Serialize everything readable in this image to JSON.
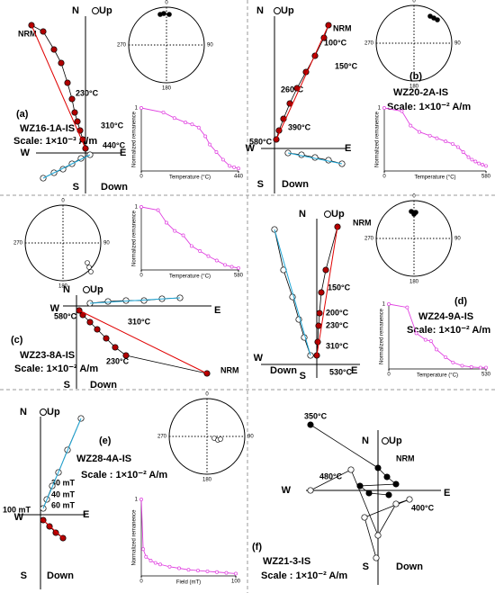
{
  "chart_data": [
    {
      "type": "line",
      "xlabel": "Temperature (°C)",
      "ylabel": "Normalized remanence",
      "color": "#e040e0",
      "xlim": [
        0,
        440
      ],
      "ylim": [
        0,
        1
      ],
      "xticks": [
        0,
        440
      ],
      "yticks": [
        1
      ],
      "x": [
        0,
        100,
        150,
        200,
        230,
        260,
        290,
        310,
        340,
        370,
        400,
        420,
        440
      ],
      "values": [
        1,
        0.93,
        0.84,
        0.77,
        0.74,
        0.69,
        0.55,
        0.42,
        0.3,
        0.18,
        0.08,
        0.06,
        0.04
      ]
    },
    {
      "type": "line",
      "xlabel": "Temperature (°C)",
      "ylabel": "Normalized remanence",
      "color": "#e040e0",
      "xlim": [
        0,
        580
      ],
      "ylim": [
        0,
        1
      ],
      "xticks": [
        0,
        580
      ],
      "yticks": [
        1
      ],
      "x": [
        0,
        100,
        150,
        200,
        260,
        300,
        350,
        390,
        420,
        450,
        480,
        500,
        520,
        540,
        560,
        580
      ],
      "values": [
        1,
        0.95,
        0.72,
        0.62,
        0.56,
        0.52,
        0.47,
        0.43,
        0.38,
        0.3,
        0.22,
        0.18,
        0.15,
        0.12,
        0.1,
        0.08
      ]
    },
    {
      "type": "line",
      "xlabel": "Temperature (°C)",
      "ylabel": "Normalized remanence",
      "color": "#e040e0",
      "xlim": [
        0,
        580
      ],
      "ylim": [
        0,
        1
      ],
      "xticks": [
        0,
        580
      ],
      "yticks": [
        1
      ],
      "x": [
        0,
        100,
        150,
        200,
        250,
        300,
        350,
        400,
        450,
        500,
        540,
        580
      ],
      "values": [
        1,
        0.95,
        0.75,
        0.62,
        0.55,
        0.38,
        0.3,
        0.22,
        0.15,
        0.08,
        0.05,
        0.03
      ]
    },
    {
      "type": "line",
      "xlabel": "Temperature (°C)",
      "ylabel": "Normalized remanence",
      "color": "#e040e0",
      "xlim": [
        0,
        530
      ],
      "ylim": [
        0,
        1
      ],
      "xticks": [
        0,
        530
      ],
      "yticks": [
        1
      ],
      "x": [
        0,
        100,
        150,
        200,
        230,
        260,
        310,
        350,
        400,
        450,
        500,
        530
      ],
      "values": [
        1,
        0.95,
        0.55,
        0.45,
        0.43,
        0.3,
        0.18,
        0.1,
        0.05,
        0.03,
        0.02,
        0.02
      ]
    },
    {
      "type": "line",
      "xlabel": "Field (mT)",
      "ylabel": "Normalized remanence",
      "color": "#e040e0",
      "xlim": [
        0,
        100
      ],
      "ylim": [
        0,
        1
      ],
      "xticks": [
        0,
        100
      ],
      "yticks": [
        1
      ],
      "x": [
        0,
        2,
        5,
        10,
        15,
        20,
        30,
        40,
        50,
        60,
        70,
        80,
        90,
        100
      ],
      "values": [
        1,
        0.35,
        0.25,
        0.2,
        0.17,
        0.15,
        0.12,
        0.1,
        0.08,
        0.07,
        0.06,
        0.05,
        0.04,
        0.03
      ]
    }
  ],
  "panels": [
    {
      "label": "(a)",
      "sample": "WZ16-1A-IS",
      "scale": "Scale: 1×10⁻³ A/m",
      "n": "N",
      "up": "Up",
      "s": "S",
      "down": "Down",
      "w": "W",
      "e": "E",
      "steps": [
        "NRM",
        "230°C",
        "310°C",
        "440°C"
      ],
      "stereo": [
        "0",
        "90",
        "180",
        "270"
      ]
    },
    {
      "label": "(b)",
      "sample": "WZ20-2A-IS",
      "scale": "Scale: 1×10⁻² A/m",
      "n": "N",
      "up": "Up",
      "s": "S",
      "down": "Down",
      "w": "W",
      "e": "E",
      "steps": [
        "NRM",
        "100°C",
        "150°C",
        "260°C",
        "390°C",
        "580°C"
      ],
      "stereo": [
        "0",
        "90",
        "180",
        "270"
      ]
    },
    {
      "label": "(c)",
      "sample": "WZ23-8A-IS",
      "scale": "Scale: 1×10⁻² A/m",
      "n": "N",
      "up": "Up",
      "s": "S",
      "down": "Down",
      "w": "W",
      "e": "E",
      "steps": [
        "580°C",
        "310°C",
        "230°C",
        "NRM"
      ],
      "stereo": [
        "0",
        "90",
        "180",
        "270"
      ]
    },
    {
      "label": "(d)",
      "sample": "WZ24-9A-IS",
      "scale": "Scale: 1×10⁻² A/m",
      "n": "N",
      "up": "Up",
      "s": "S",
      "down": "Down",
      "w": "W",
      "e": "E",
      "steps": [
        "NRM",
        "150°C",
        "200°C",
        "230°C",
        "310°C",
        "530°C"
      ],
      "stereo": [
        "0",
        "90",
        "180",
        "270"
      ]
    },
    {
      "label": "(e)",
      "sample": "WZ28-4A-IS",
      "scale": "Scale : 1×10⁻² A/m",
      "n": "N",
      "up": "Up",
      "s": "S",
      "down": "Down",
      "w": "W",
      "e": "E",
      "steps": [
        "30 mT",
        "40 mT",
        "60 mT",
        "100 mT"
      ],
      "stereo": [
        "0",
        "90",
        "180",
        "270"
      ]
    },
    {
      "label": "(f)",
      "sample": "WZ21-3-IS",
      "scale": "Scale : 1×10⁻² A/m",
      "n": "N",
      "up": "Up",
      "s": "S",
      "down": "Down",
      "w": "W",
      "e": "E",
      "steps": [
        "350°C",
        "NRM",
        "480°C",
        "400°C"
      ]
    }
  ]
}
